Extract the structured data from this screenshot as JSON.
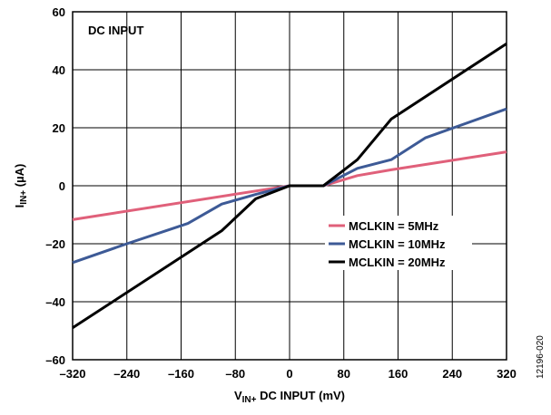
{
  "chart_data": {
    "type": "line",
    "annotation": "DC INPUT",
    "xlabel": {
      "main": "V",
      "sub": "IN+",
      "rest": " DC INPUT (mV)"
    },
    "ylabel": {
      "main": "I",
      "sub": "IN+",
      "rest": " (µA)"
    },
    "xlim": [
      -320,
      320
    ],
    "ylim": [
      -60,
      60
    ],
    "xticks": [
      -320,
      -240,
      -160,
      -80,
      0,
      80,
      160,
      240,
      320
    ],
    "yticks": [
      -60,
      -40,
      -20,
      0,
      20,
      40,
      60
    ],
    "xtick_labels": [
      "–320",
      "–240",
      "–160",
      "–80",
      "0",
      "80",
      "160",
      "240",
      "320"
    ],
    "ytick_labels": [
      "–60",
      "–40",
      "–20",
      "0",
      "20",
      "40",
      "60"
    ],
    "grid": true,
    "legend_position": "right-center",
    "series": [
      {
        "name": "MCLKIN = 5MHz",
        "color": "#e0607a",
        "x": [
          -320,
          -50,
          0,
          50,
          100,
          150,
          320
        ],
        "y": [
          -11.7,
          -1.8,
          0,
          0,
          3.5,
          5.5,
          11.7
        ]
      },
      {
        "name": "MCLKIN = 10MHz",
        "color": "#3d5a96",
        "x": [
          -320,
          -240,
          -150,
          -100,
          -50,
          0,
          50,
          100,
          150,
          200,
          320
        ],
        "y": [
          -26.5,
          -20,
          -13,
          -6.3,
          -3,
          0,
          0,
          6,
          9,
          16.5,
          26.5
        ]
      },
      {
        "name": "MCLKIN = 20MHz",
        "color": "#000000",
        "x": [
          -320,
          -100,
          -50,
          0,
          50,
          100,
          150,
          320
        ],
        "y": [
          -49,
          -15.5,
          -4.5,
          0,
          0,
          9,
          23,
          49
        ]
      }
    ],
    "figure_id": "12196-020"
  }
}
